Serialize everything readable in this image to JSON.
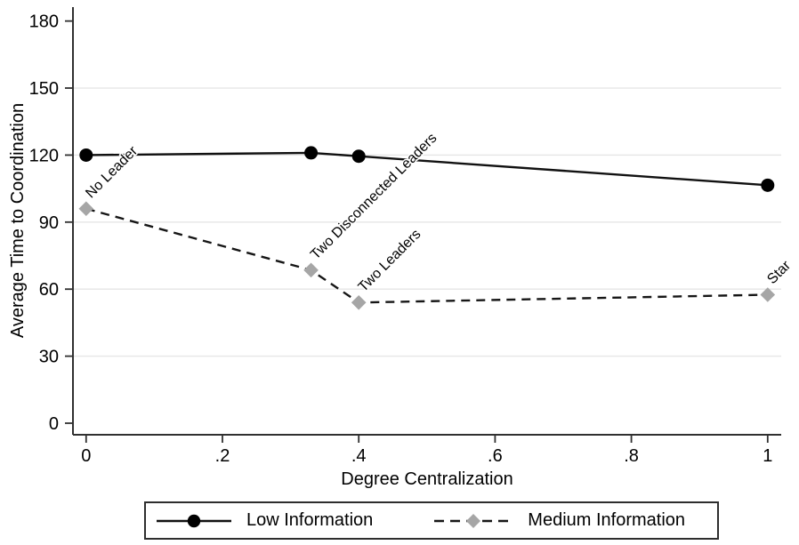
{
  "chart_data": {
    "type": "line",
    "title": "",
    "xlabel": "Degree Centralization",
    "ylabel": "Average Time to Coordination",
    "xlim": [
      0,
      1
    ],
    "ylim": [
      0,
      180
    ],
    "grid": "horizontal-only",
    "legend_position": "bottom-boxed",
    "x_ticks": [
      {
        "value": 0,
        "label": "0"
      },
      {
        "value": 0.2,
        "label": ".2"
      },
      {
        "value": 0.4,
        "label": ".4"
      },
      {
        "value": 0.6,
        "label": ".6"
      },
      {
        "value": 0.8,
        "label": ".8"
      },
      {
        "value": 1,
        "label": "1"
      }
    ],
    "y_ticks": [
      {
        "value": 0,
        "label": "0"
      },
      {
        "value": 30,
        "label": "30"
      },
      {
        "value": 60,
        "label": "60"
      },
      {
        "value": 90,
        "label": "90"
      },
      {
        "value": 120,
        "label": "120"
      },
      {
        "value": 150,
        "label": "150"
      },
      {
        "value": 180,
        "label": "180"
      }
    ],
    "gridlines_y": [
      30,
      60,
      90,
      120,
      150
    ],
    "x": [
      0,
      0.33,
      0.4,
      1
    ],
    "series": [
      {
        "name": "Low Information",
        "line_style": "solid",
        "marker": "circle",
        "line_color": "#111111",
        "marker_color": "#000000",
        "values": [
          120,
          121,
          119.5,
          106.5
        ]
      },
      {
        "name": "Medium Information",
        "line_style": "dashed",
        "marker": "diamond",
        "line_color": "#161616",
        "marker_color": "#a6a6a6",
        "values": [
          96,
          68.5,
          54,
          57.5
        ]
      }
    ],
    "annotations": [
      {
        "text": "No Leader",
        "x": 0,
        "y": 96,
        "rotation": -45
      },
      {
        "text": "Two Disconnected Leaders",
        "x": 0.33,
        "y": 68.5,
        "rotation": -45
      },
      {
        "text": "Two Leaders",
        "x": 0.4,
        "y": 54,
        "rotation": -45
      },
      {
        "text": "Star",
        "x": 1,
        "y": 57.5,
        "rotation": -45
      }
    ],
    "colors": {
      "grid": "#e6e6e6",
      "axis": "#303030",
      "text": "#000000",
      "background": "#ffffff"
    }
  }
}
